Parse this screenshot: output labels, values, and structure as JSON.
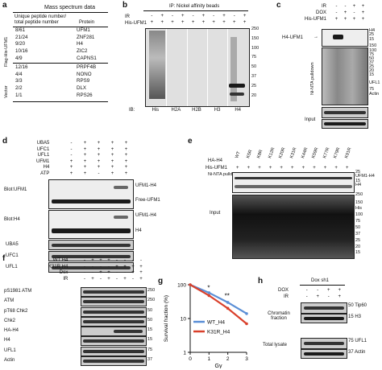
{
  "panel_labels": [
    "a",
    "b",
    "c",
    "d",
    "e",
    "f",
    "g",
    "h"
  ],
  "a": {
    "title": "Mass spectrum data",
    "col1": "Unique peptide number/\ntotal peptide number",
    "col1_line1": "Unique peptide number/",
    "col1_line2": "total peptide number",
    "col2": "Protein",
    "group1": "Flag-His-UFM1",
    "group2": "Vector",
    "rows1": [
      [
        "8/61",
        "UFM1"
      ],
      [
        "21/24",
        "ZNF281"
      ],
      [
        "9/20",
        "H4"
      ],
      [
        "10/16",
        "ZIC2"
      ],
      [
        "4/9",
        "CAPNS1"
      ]
    ],
    "rows2": [
      [
        "12/16",
        "PRPF4B"
      ],
      [
        "4/4",
        "NONO"
      ],
      [
        "3/3",
        "RPS9"
      ],
      [
        "2/2",
        "DLX"
      ],
      [
        "1/1",
        "RPS26"
      ]
    ]
  },
  "b": {
    "title": "IP: Nickel affinity beads",
    "rows": [
      {
        "label": "IR",
        "vals": [
          "-",
          "+",
          "-",
          "+",
          "-",
          "+",
          "-",
          "+",
          "-",
          "+"
        ]
      },
      {
        "label": "His-UFM1",
        "vals": [
          "+",
          "+",
          "+",
          "+",
          "+",
          "+",
          "+",
          "+",
          "+",
          "+"
        ]
      }
    ],
    "ib_label": "IB:",
    "lanes": [
      "His",
      "H2A",
      "H2B",
      "H3",
      "H4"
    ],
    "mw": [
      "250",
      "150",
      "100",
      "75",
      "50",
      "37",
      "25",
      "20"
    ]
  },
  "c": {
    "rows": [
      {
        "label": "IR",
        "vals": [
          "-",
          "-",
          "+",
          "+"
        ]
      },
      {
        "label": "DOX",
        "vals": [
          "-",
          "+",
          "-",
          "+"
        ]
      },
      {
        "label": "His-UFM1",
        "vals": [
          "+",
          "+",
          "+",
          "+"
        ]
      }
    ],
    "arrow_label": "H4-UFM1",
    "side_left": "Ni-NTA pulldown",
    "input_label": "Input",
    "right_labels": [
      "H4",
      "25",
      "15",
      "150",
      "100",
      "75",
      "50",
      "37",
      "25",
      "20",
      "15",
      "UFL1",
      "75",
      "Actin"
    ]
  },
  "d": {
    "rows": [
      {
        "label": "UBA5",
        "vals": [
          "-",
          "+",
          "+",
          "+",
          "+"
        ]
      },
      {
        "label": "UFC1",
        "vals": [
          "-",
          "+",
          "+",
          "+",
          "+"
        ]
      },
      {
        "label": "UFL1",
        "vals": [
          "-",
          "+",
          "+",
          "+",
          "+"
        ]
      },
      {
        "label": "UFM1",
        "vals": [
          "+",
          "+",
          "+",
          "+",
          "+"
        ]
      },
      {
        "label": "H4",
        "vals": [
          "+",
          "+",
          "+",
          "+",
          "+"
        ]
      },
      {
        "label": "ATP",
        "vals": [
          "+",
          "+",
          "-",
          "+",
          "+"
        ]
      }
    ],
    "blot1_label": "Blot:UFM1",
    "blot1_right": [
      "UFM1-H4",
      "Free-UFM1"
    ],
    "blot2_label": "Blot:H4",
    "blot2_right": [
      "UFM1-H4",
      "H4"
    ],
    "extra_blots": [
      "UBA5",
      "UFC1",
      "UFL1"
    ]
  },
  "e": {
    "ha_label": "HA-H4",
    "mutants": [
      "WT",
      "K5R",
      "K8R",
      "K12R",
      "K20R",
      "K31R",
      "K44R",
      "K59R",
      "K77R",
      "K79R",
      "K91R"
    ],
    "his_label": "His-UFM1",
    "side_left": "Ni-NTA pulldown",
    "input_label": "Input",
    "right_labels": [
      "25",
      "UFM1-H4",
      "15",
      "H4",
      "250",
      "150",
      "His",
      "100",
      "75",
      "50",
      "37",
      "25",
      "20",
      "15"
    ]
  },
  "f": {
    "rows": [
      {
        "label": "WT H4",
        "vals": [
          "-",
          "+",
          "+",
          "+",
          "-",
          "-",
          "-",
          "-"
        ]
      },
      {
        "label": "K31R H4",
        "vals": [
          "-",
          "-",
          "-",
          "-",
          "+",
          "+",
          "+",
          "+"
        ]
      },
      {
        "label": "Dox",
        "vals": [
          "-",
          "-",
          "+",
          "+",
          "-",
          "-",
          "+",
          "+"
        ]
      },
      {
        "label": "IR",
        "vals": [
          "-",
          "+",
          "-",
          "+",
          "-",
          "+",
          "-",
          "+"
        ]
      }
    ],
    "blots": [
      "pS1981 ATM",
      "ATM",
      "pT68 Chk2",
      "Chk2",
      "HA-H4",
      "H4",
      "UFL1",
      "Actin"
    ],
    "mw": [
      "250",
      "250",
      "50",
      "50",
      "15",
      "15",
      "75",
      "37"
    ]
  },
  "g": {
    "ylabel": "Survival fraction (%)",
    "xlabel": "Gy",
    "stars": [
      "*",
      "**"
    ]
  },
  "h": {
    "title": "Dox sh1",
    "rows": [
      {
        "label": "DOX",
        "vals": [
          "-",
          "-",
          "+",
          "+"
        ]
      },
      {
        "label": "IR",
        "vals": [
          "-",
          "+",
          "-",
          "+"
        ]
      }
    ],
    "left": [
      "Chromatin fraction",
      "Total lysate"
    ],
    "right": [
      "Tip60",
      "H3",
      "UFL1",
      "Actin"
    ],
    "mw": [
      "50",
      "15",
      "75",
      "37"
    ]
  },
  "chart_data": {
    "type": "line",
    "x": [
      0,
      1,
      2,
      3
    ],
    "xlabel": "Gy",
    "ylabel": "Survival fraction (%)",
    "yscale": "log",
    "ylim": [
      1,
      100
    ],
    "yticks": [
      1,
      10,
      100
    ],
    "xticks": [
      0,
      1,
      2,
      3
    ],
    "series": [
      {
        "name": "WT_H4",
        "values": [
          100,
          58,
          30,
          14
        ],
        "color": "#5b8fd6"
      },
      {
        "name": "K31R_H4",
        "values": [
          100,
          48,
          20,
          7
        ],
        "color": "#d9402b"
      }
    ],
    "annotations": [
      "*",
      "**"
    ]
  }
}
